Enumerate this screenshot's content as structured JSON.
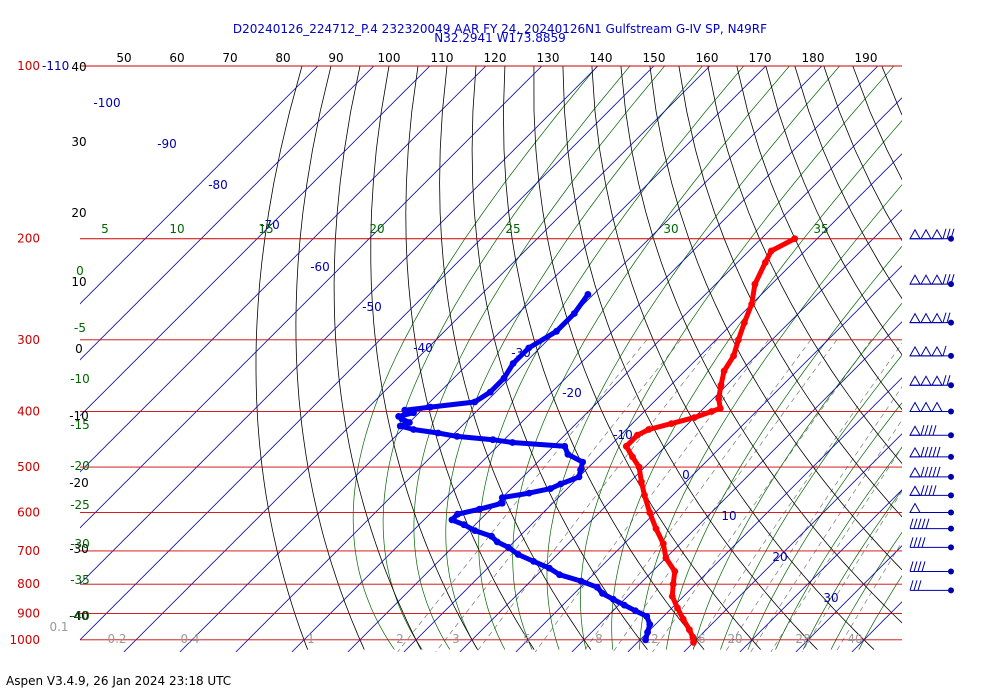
{
  "chart_data": {
    "type": "scatter",
    "title": "D20240126_224712_P.4 232320049 AAR FY 24, 20240126N1 Gulfstream G-IV SP, N49RF",
    "subtitle": "N32.2941 W173.8859",
    "footer": "Aspen V3.4.9, 26 Jan 2024  23:18 UTC",
    "pressure_levels": [
      100,
      200,
      300,
      400,
      500,
      600,
      700,
      800,
      900,
      1000
    ],
    "pressure_labels": [
      "100",
      "200",
      "300",
      "400",
      "500",
      "600",
      "700",
      "800",
      "900",
      "1000"
    ],
    "top_label_extra": "-110",
    "top_temp_ticks": [
      "50",
      "60",
      "70",
      "80",
      "90",
      "100",
      "110",
      "120",
      "130",
      "140",
      "150",
      "160",
      "170",
      "180",
      "190"
    ],
    "theta_e_labels": [
      "-100",
      "-90",
      "-80",
      "-70",
      "-60",
      "-50",
      "-40",
      "-30",
      "-20",
      "-10",
      "0",
      "10",
      "20",
      "30"
    ],
    "theta_w_labels": [
      "5",
      "10",
      "15",
      "20",
      "25",
      "30",
      "35"
    ],
    "dry_adiabat_labels": [
      "40",
      "30",
      "20",
      "10",
      "0",
      "-10",
      "-20",
      "-30",
      "-40"
    ],
    "moist_adiabat_labels": [
      "0",
      "-5",
      "-10",
      "-15",
      "-20",
      "-25",
      "-30",
      "-35",
      "-40"
    ],
    "mixing_ratio_labels": [
      "0.1",
      "0.2",
      "0.4",
      "1",
      "2",
      "3",
      "5",
      "8",
      "12",
      "16",
      "20",
      "28",
      "40"
    ],
    "series": [
      {
        "name": "Temperature",
        "color": "#ff0000",
        "points": [
          [
            200,
            -44
          ],
          [
            210,
            -46
          ],
          [
            220,
            -45
          ],
          [
            240,
            -43
          ],
          [
            260,
            -40
          ],
          [
            280,
            -38
          ],
          [
            300,
            -36
          ],
          [
            320,
            -34
          ],
          [
            340,
            -33
          ],
          [
            360,
            -31
          ],
          [
            380,
            -29
          ],
          [
            395,
            -27
          ],
          [
            400,
            -28
          ],
          [
            410,
            -30
          ],
          [
            420,
            -33
          ],
          [
            430,
            -36
          ],
          [
            440,
            -37
          ],
          [
            460,
            -37
          ],
          [
            480,
            -34
          ],
          [
            500,
            -31
          ],
          [
            530,
            -28
          ],
          [
            560,
            -25
          ],
          [
            600,
            -21
          ],
          [
            640,
            -17
          ],
          [
            680,
            -13
          ],
          [
            720,
            -10
          ],
          [
            760,
            -6
          ],
          [
            800,
            -4
          ],
          [
            840,
            -2
          ],
          [
            880,
            1
          ],
          [
            920,
            4
          ],
          [
            960,
            7
          ],
          [
            990,
            9
          ],
          [
            1010,
            10
          ]
        ]
      },
      {
        "name": "Dewpoint",
        "color": "#0000ee",
        "points": [
          [
            250,
            -71
          ],
          [
            270,
            -70
          ],
          [
            290,
            -70
          ],
          [
            310,
            -72
          ],
          [
            330,
            -72
          ],
          [
            350,
            -71
          ],
          [
            370,
            -71
          ],
          [
            385,
            -72
          ],
          [
            393,
            -79
          ],
          [
            398,
            -83
          ],
          [
            402,
            -81
          ],
          [
            408,
            -83
          ],
          [
            412,
            -82
          ],
          [
            418,
            -80
          ],
          [
            424,
            -81
          ],
          [
            430,
            -78
          ],
          [
            436,
            -73
          ],
          [
            442,
            -69
          ],
          [
            448,
            -62
          ],
          [
            453,
            -58
          ],
          [
            460,
            -48
          ],
          [
            475,
            -46
          ],
          [
            490,
            -42
          ],
          [
            505,
            -41
          ],
          [
            520,
            -40
          ],
          [
            535,
            -42
          ],
          [
            545,
            -43
          ],
          [
            555,
            -46
          ],
          [
            565,
            -50
          ],
          [
            578,
            -49
          ],
          [
            592,
            -52
          ],
          [
            604,
            -55
          ],
          [
            618,
            -55
          ],
          [
            630,
            -52
          ],
          [
            645,
            -49
          ],
          [
            660,
            -45
          ],
          [
            675,
            -43
          ],
          [
            690,
            -40
          ],
          [
            710,
            -37
          ],
          [
            730,
            -33
          ],
          [
            750,
            -29
          ],
          [
            770,
            -26
          ],
          [
            790,
            -21
          ],
          [
            810,
            -17
          ],
          [
            830,
            -15
          ],
          [
            850,
            -12
          ],
          [
            870,
            -9
          ],
          [
            890,
            -6
          ],
          [
            910,
            -3
          ],
          [
            940,
            -1
          ],
          [
            970,
            0
          ],
          [
            1000,
            1
          ]
        ]
      }
    ],
    "wind_barbs": [
      {
        "p": 200,
        "flags": 3,
        "barbs": 3
      },
      {
        "p": 240,
        "flags": 3,
        "barbs": 3
      },
      {
        "p": 280,
        "flags": 3,
        "barbs": 2
      },
      {
        "p": 320,
        "flags": 3,
        "barbs": 1
      },
      {
        "p": 360,
        "flags": 3,
        "barbs": 2
      },
      {
        "p": 400,
        "flags": 3,
        "barbs": 0
      },
      {
        "p": 440,
        "flags": 1,
        "barbs": 4
      },
      {
        "p": 480,
        "flags": 1,
        "barbs": 5
      },
      {
        "p": 520,
        "flags": 1,
        "barbs": 5
      },
      {
        "p": 560,
        "flags": 1,
        "barbs": 4
      },
      {
        "p": 600,
        "flags": 1,
        "barbs": 0
      },
      {
        "p": 640,
        "flags": 0,
        "barbs": 5
      },
      {
        "p": 690,
        "flags": 0,
        "barbs": 4
      },
      {
        "p": 760,
        "flags": 0,
        "barbs": 4
      },
      {
        "p": 820,
        "flags": 0,
        "barbs": 3
      }
    ],
    "colors": {
      "isobar": "#cc0000",
      "temp": "#ff0000",
      "dew": "#0000ee",
      "theta_e": "#0000aa",
      "theta_w": "#006600",
      "dry_adiabat": "#000000",
      "mixing": "#777777"
    }
  }
}
